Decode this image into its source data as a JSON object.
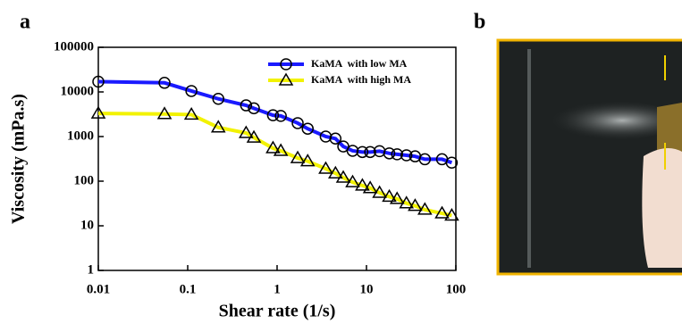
{
  "panels": [
    "a",
    "b"
  ],
  "chart_data": {
    "type": "line",
    "x_label": "Shear rate (1/s)",
    "y_label": "Viscosity (mPa.s)",
    "x": [
      0.01,
      0.055,
      0.11,
      0.22,
      0.45,
      0.55,
      0.9,
      1.1,
      1.7,
      2.2,
      3.5,
      4.5,
      5.5,
      7,
      9,
      11,
      14,
      18,
      22,
      28,
      35,
      45,
      70,
      90
    ],
    "series": [
      {
        "name": "KaMA  with low MA",
        "color": "#1a1aff",
        "marker": "circle",
        "values": [
          17000,
          16000,
          10500,
          7000,
          5000,
          4300,
          3000,
          2900,
          2000,
          1500,
          1000,
          900,
          600,
          480,
          450,
          450,
          470,
          420,
          400,
          380,
          360,
          310,
          310,
          260
        ]
      },
      {
        "name": "KaMA  with high MA",
        "color": "#f2f200",
        "marker": "triangle",
        "values": [
          3300,
          3200,
          3100,
          1600,
          1200,
          950,
          550,
          480,
          330,
          280,
          190,
          150,
          120,
          95,
          80,
          70,
          55,
          45,
          40,
          32,
          28,
          23,
          19,
          17
        ]
      }
    ],
    "xscale": "log",
    "yscale": "log",
    "xlim": [
      0.01,
      100
    ],
    "ylim": [
      1,
      100000
    ],
    "xticks": [
      0.01,
      0.1,
      1,
      10,
      100
    ],
    "yticks": [
      1,
      10,
      100,
      1000,
      10000,
      100000
    ],
    "legend": "upper right"
  }
}
